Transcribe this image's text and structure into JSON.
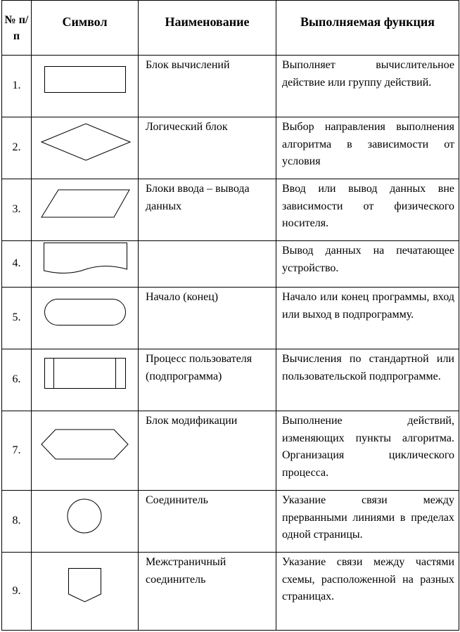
{
  "table": {
    "headers": {
      "number": "№ п/п",
      "symbol": "Символ",
      "name": "Наименование",
      "function": "Выполняемая функция"
    },
    "rows": [
      {
        "num": "1.",
        "icon": "process-rectangle-icon",
        "name": "Блок вычислений",
        "func": "Выполняет вычислительное действие или группу действий."
      },
      {
        "num": "2.",
        "icon": "decision-diamond-icon",
        "name": "Логический блок",
        "func": "Выбор направления выполнения алгоритма в зависимости от условия"
      },
      {
        "num": "3.",
        "icon": "io-parallelogram-icon",
        "name": "Блоки ввода – вывода данных",
        "func": "Ввод или вывод данных вне зависимости от физического носителя."
      },
      {
        "num": "4.",
        "icon": "document-icon",
        "name": "",
        "func": "Вывод данных на печатающее устройство."
      },
      {
        "num": "5.",
        "icon": "terminator-icon",
        "name": "Начало (конец)",
        "func": "Начало или конец программы, вход или выход в подпрограмму."
      },
      {
        "num": "6.",
        "icon": "predefined-process-icon",
        "name": "Процесс пользователя (подпрограмма)",
        "func": "Вычисления по стандартной или пользовательской подпрограмме."
      },
      {
        "num": "7.",
        "icon": "preparation-hexagon-icon",
        "name": "Блок модификации",
        "func": "Выполнение действий, изменяющих пункты алгоритма. Организация циклического процесса."
      },
      {
        "num": "8.",
        "icon": "connector-circle-icon",
        "name": "Соединитель",
        "func": "Указание связи между прерванными линиями в пределах одной страницы."
      },
      {
        "num": "9.",
        "icon": "offpage-connector-icon",
        "name": "Межстраничный соединитель",
        "func": "Указание связи между частями схемы, расположенной на разных страницах."
      }
    ]
  }
}
